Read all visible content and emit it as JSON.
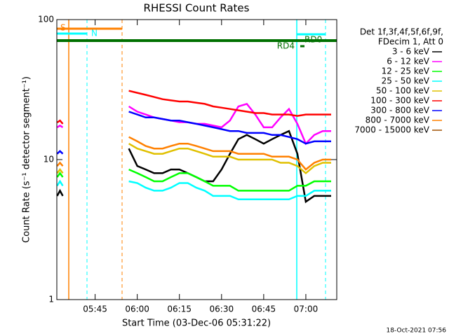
{
  "chart_data": {
    "type": "line",
    "title": "RHESSI Count Rates",
    "xlabel": "Start Time (03-Dec-06 05:31:22)",
    "ylabel": "Count Rate (s⁻¹ detector segment⁻¹)",
    "footer": "18-Oct-2021 07:56",
    "legend_header": [
      "Det 1f,3f,4f,5f,6f,9f,",
      "FDecim 1, Att 0"
    ],
    "log_y": true,
    "ylim": [
      1,
      100
    ],
    "yticks": [
      1,
      10,
      100
    ],
    "xlim": [
      331.37,
      431
    ],
    "xticks": [
      {
        "value": 345,
        "label": "05:45"
      },
      {
        "value": 360,
        "label": "06:00"
      },
      {
        "value": 375,
        "label": "06:15"
      },
      {
        "value": 390,
        "label": "06:30"
      },
      {
        "value": 405,
        "label": "06:45"
      },
      {
        "value": 420,
        "label": "07:00"
      }
    ],
    "annotations": [
      "S",
      "N",
      "RD0",
      "RD4"
    ],
    "x": [
      331.5,
      332.5,
      333.5,
      345,
      357,
      360,
      363,
      366,
      369,
      372,
      375,
      378,
      381,
      384,
      387,
      390,
      393,
      396,
      399,
      402,
      405,
      408,
      411,
      414,
      417,
      420,
      423,
      426,
      429
    ],
    "series": [
      {
        "name": "3 - 6 keV",
        "color": "#000000",
        "values": [
          5.5,
          6,
          5.5,
          null,
          12,
          9,
          8.5,
          8,
          8,
          8.5,
          8.5,
          8,
          7.5,
          7,
          7,
          8.5,
          11,
          14,
          15,
          14,
          13,
          14,
          15,
          16,
          11,
          5,
          5.5,
          5.5,
          5.5
        ]
      },
      {
        "name": "6 - 12 keV",
        "color": "#ff00ff",
        "values": [
          17,
          17.5,
          17,
          null,
          24,
          22,
          21,
          20,
          19.5,
          19,
          18.5,
          18.5,
          18,
          18,
          17.5,
          17,
          19,
          24,
          25,
          21,
          17,
          17,
          20,
          23,
          18,
          13,
          15,
          16,
          16
        ]
      },
      {
        "name": "12 - 25 keV",
        "color": "#00ff00",
        "values": [
          7.5,
          8,
          7.5,
          null,
          8.5,
          8,
          7.5,
          7,
          7,
          7.5,
          8,
          8,
          7.5,
          7,
          6.5,
          6.5,
          6.5,
          6,
          6,
          6,
          6,
          6,
          6,
          6,
          6.5,
          6.5,
          7,
          7,
          7
        ]
      },
      {
        "name": "25 - 50 keV",
        "color": "#00ffff",
        "values": [
          6.5,
          7,
          6.5,
          null,
          7,
          6.8,
          6.3,
          6,
          6,
          6.3,
          6.8,
          6.8,
          6.3,
          6,
          5.5,
          5.5,
          5.5,
          5.2,
          5.2,
          5.2,
          5.2,
          5.2,
          5.2,
          5.2,
          5.5,
          5.5,
          6,
          6,
          6
        ]
      },
      {
        "name": "50 - 100 keV",
        "color": "#e0c000",
        "values": [
          8,
          8.5,
          8,
          null,
          13,
          12,
          11.5,
          11,
          11,
          11.5,
          12,
          12,
          11.5,
          11,
          10.5,
          10.5,
          10.5,
          10,
          10,
          10,
          10,
          10,
          9.5,
          9.5,
          9,
          8,
          9,
          9.5,
          9.5
        ]
      },
      {
        "name": "100 - 300 keV",
        "color": "#ff0000",
        "values": [
          18.4,
          19,
          18,
          null,
          31,
          30,
          29,
          28,
          27,
          26.5,
          26,
          26,
          25.5,
          25,
          24,
          23.5,
          23,
          22.5,
          22,
          21.5,
          21.5,
          21,
          21,
          21,
          20.5,
          21,
          21,
          21,
          21
        ]
      },
      {
        "name": "300 - 800 keV",
        "color": "#0000ff",
        "values": [
          11,
          11.5,
          11,
          null,
          22,
          21,
          20,
          20,
          19.5,
          19,
          19,
          18.5,
          18,
          17.5,
          17,
          16.5,
          16,
          16,
          15.5,
          15.5,
          15.5,
          15,
          15,
          14.5,
          14,
          13,
          13.5,
          13.5,
          13.5
        ]
      },
      {
        "name": "800 - 7000 keV",
        "color": "#ff8000",
        "values": [
          9,
          9.5,
          9,
          null,
          14.5,
          13.5,
          12.5,
          12,
          12,
          12.5,
          13,
          13,
          12.5,
          12,
          11.5,
          11.5,
          11.5,
          11,
          11,
          11,
          11,
          10.5,
          10.5,
          10.5,
          10,
          8.5,
          9.5,
          10,
          10
        ]
      },
      {
        "name": "7000 - 15000 keV",
        "color": "#a05000",
        "values": [
          null,
          null,
          null,
          null,
          null,
          null,
          null,
          null,
          null,
          null,
          null,
          null,
          null,
          null,
          null,
          null,
          null,
          null,
          null,
          null,
          null,
          null,
          null,
          null,
          null,
          null,
          null,
          null,
          null
        ]
      }
    ]
  }
}
